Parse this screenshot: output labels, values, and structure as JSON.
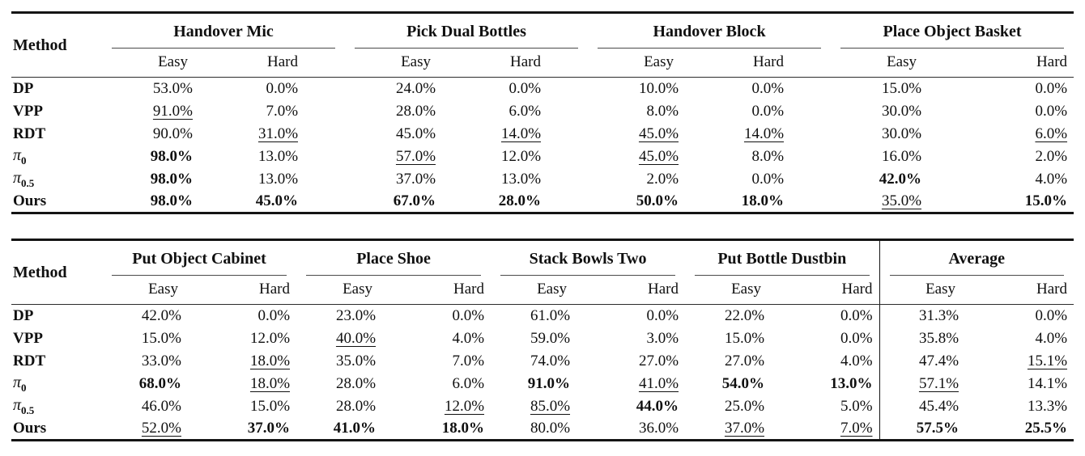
{
  "page": {
    "background": "#ffffff",
    "text_color": "#101010"
  },
  "method_header": "Method",
  "subheader_labels": [
    "Easy",
    "Hard"
  ],
  "legend_semantics": {
    "bold": "best result",
    "underline": "second-best result"
  },
  "tables": [
    {
      "id": "benchmark-table-1",
      "groups": [
        "Handover Mic",
        "Pick Dual Bottles",
        "Handover Block",
        "Place Object Basket"
      ],
      "divider_col": null,
      "rows": [
        {
          "method": "DP",
          "sub": "",
          "cells": [
            [
              "53.0%",
              ""
            ],
            [
              "0.0%",
              ""
            ],
            [
              "24.0%",
              ""
            ],
            [
              "0.0%",
              ""
            ],
            [
              "10.0%",
              ""
            ],
            [
              "0.0%",
              ""
            ],
            [
              "15.0%",
              ""
            ],
            [
              "0.0%",
              ""
            ]
          ]
        },
        {
          "method": "VPP",
          "sub": "",
          "cells": [
            [
              "91.0%",
              "u"
            ],
            [
              "7.0%",
              ""
            ],
            [
              "28.0%",
              ""
            ],
            [
              "6.0%",
              ""
            ],
            [
              "8.0%",
              ""
            ],
            [
              "0.0%",
              ""
            ],
            [
              "30.0%",
              ""
            ],
            [
              "0.0%",
              ""
            ]
          ]
        },
        {
          "method": "RDT",
          "sub": "",
          "cells": [
            [
              "90.0%",
              ""
            ],
            [
              "31.0%",
              "u"
            ],
            [
              "45.0%",
              ""
            ],
            [
              "14.0%",
              "u"
            ],
            [
              "45.0%",
              "u"
            ],
            [
              "14.0%",
              "u"
            ],
            [
              "30.0%",
              ""
            ],
            [
              "6.0%",
              "u"
            ]
          ]
        },
        {
          "method": "π",
          "sub": "0",
          "cells": [
            [
              "98.0%",
              "b"
            ],
            [
              "13.0%",
              ""
            ],
            [
              "57.0%",
              "u"
            ],
            [
              "12.0%",
              ""
            ],
            [
              "45.0%",
              "u"
            ],
            [
              "8.0%",
              ""
            ],
            [
              "16.0%",
              ""
            ],
            [
              "2.0%",
              ""
            ]
          ]
        },
        {
          "method": "π",
          "sub": "0.5",
          "cells": [
            [
              "98.0%",
              "b"
            ],
            [
              "13.0%",
              ""
            ],
            [
              "37.0%",
              ""
            ],
            [
              "13.0%",
              ""
            ],
            [
              "2.0%",
              ""
            ],
            [
              "0.0%",
              ""
            ],
            [
              "42.0%",
              "b"
            ],
            [
              "4.0%",
              ""
            ]
          ]
        },
        {
          "method": "Ours",
          "sub": "",
          "cells": [
            [
              "98.0%",
              "b"
            ],
            [
              "45.0%",
              "b"
            ],
            [
              "67.0%",
              "b"
            ],
            [
              "28.0%",
              "b"
            ],
            [
              "50.0%",
              "b"
            ],
            [
              "18.0%",
              "b"
            ],
            [
              "35.0%",
              "u"
            ],
            [
              "15.0%",
              "b"
            ]
          ]
        }
      ]
    },
    {
      "id": "benchmark-table-2",
      "groups": [
        "Put Object Cabinet",
        "Place Shoe",
        "Stack Bowls Two",
        "Put Bottle Dustbin",
        "Average"
      ],
      "divider_col": 8,
      "rows": [
        {
          "method": "DP",
          "sub": "",
          "cells": [
            [
              "42.0%",
              ""
            ],
            [
              "0.0%",
              ""
            ],
            [
              "23.0%",
              ""
            ],
            [
              "0.0%",
              ""
            ],
            [
              "61.0%",
              ""
            ],
            [
              "0.0%",
              ""
            ],
            [
              "22.0%",
              ""
            ],
            [
              "0.0%",
              ""
            ],
            [
              "31.3%",
              ""
            ],
            [
              "0.0%",
              ""
            ]
          ]
        },
        {
          "method": "VPP",
          "sub": "",
          "cells": [
            [
              "15.0%",
              ""
            ],
            [
              "12.0%",
              ""
            ],
            [
              "40.0%",
              "u"
            ],
            [
              "4.0%",
              ""
            ],
            [
              "59.0%",
              ""
            ],
            [
              "3.0%",
              ""
            ],
            [
              "15.0%",
              ""
            ],
            [
              "0.0%",
              ""
            ],
            [
              "35.8%",
              ""
            ],
            [
              "4.0%",
              ""
            ]
          ]
        },
        {
          "method": "RDT",
          "sub": "",
          "cells": [
            [
              "33.0%",
              ""
            ],
            [
              "18.0%",
              "u"
            ],
            [
              "35.0%",
              ""
            ],
            [
              "7.0%",
              ""
            ],
            [
              "74.0%",
              ""
            ],
            [
              "27.0%",
              ""
            ],
            [
              "27.0%",
              ""
            ],
            [
              "4.0%",
              ""
            ],
            [
              "47.4%",
              ""
            ],
            [
              "15.1%",
              "u"
            ]
          ]
        },
        {
          "method": "π",
          "sub": "0",
          "cells": [
            [
              "68.0%",
              "b"
            ],
            [
              "18.0%",
              "u"
            ],
            [
              "28.0%",
              ""
            ],
            [
              "6.0%",
              ""
            ],
            [
              "91.0%",
              "b"
            ],
            [
              "41.0%",
              "u"
            ],
            [
              "54.0%",
              "b"
            ],
            [
              "13.0%",
              "b"
            ],
            [
              "57.1%",
              "u"
            ],
            [
              "14.1%",
              ""
            ]
          ]
        },
        {
          "method": "π",
          "sub": "0.5",
          "cells": [
            [
              "46.0%",
              ""
            ],
            [
              "15.0%",
              ""
            ],
            [
              "28.0%",
              ""
            ],
            [
              "12.0%",
              "u"
            ],
            [
              "85.0%",
              "u"
            ],
            [
              "44.0%",
              "b"
            ],
            [
              "25.0%",
              ""
            ],
            [
              "5.0%",
              ""
            ],
            [
              "45.4%",
              ""
            ],
            [
              "13.3%",
              ""
            ]
          ]
        },
        {
          "method": "Ours",
          "sub": "",
          "cells": [
            [
              "52.0%",
              "u"
            ],
            [
              "37.0%",
              "b"
            ],
            [
              "41.0%",
              "b"
            ],
            [
              "18.0%",
              "b"
            ],
            [
              "80.0%",
              ""
            ],
            [
              "36.0%",
              ""
            ],
            [
              "37.0%",
              "u"
            ],
            [
              "7.0%",
              "u"
            ],
            [
              "57.5%",
              "b"
            ],
            [
              "25.5%",
              "b"
            ]
          ]
        }
      ]
    }
  ]
}
